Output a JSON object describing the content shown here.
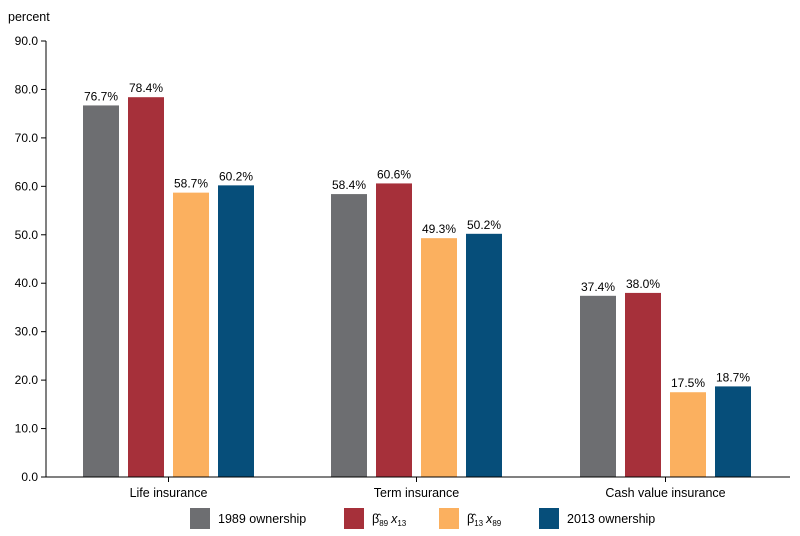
{
  "chart_data": {
    "type": "bar",
    "unit_label": "percent",
    "categories": [
      "Life insurance",
      "Term insurance",
      "Cash value insurance"
    ],
    "ylim": [
      0,
      90
    ],
    "yticks": [
      "0.0",
      "10.0",
      "20.0",
      "30.0",
      "40.0",
      "50.0",
      "60.0",
      "70.0",
      "80.0",
      "90.0"
    ],
    "grid": false,
    "legend_position": "bottom",
    "series": [
      {
        "name": "1989 ownership",
        "color": "#6d6e71",
        "values": [
          76.7,
          58.4,
          37.4
        ],
        "labels": [
          "76.7%",
          "58.4%",
          "37.4%"
        ]
      },
      {
        "name": "β̂89 x13",
        "legend": {
          "beta_sub": "89",
          "x_sub": "13"
        },
        "color": "#a6303a",
        "values": [
          78.4,
          60.6,
          38.0
        ],
        "labels": [
          "78.4%",
          "60.6%",
          "38.0%"
        ]
      },
      {
        "name": "β̂13 x89",
        "legend": {
          "beta_sub": "13",
          "x_sub": "89"
        },
        "color": "#fbb05f",
        "values": [
          58.7,
          49.3,
          17.5
        ],
        "labels": [
          "58.7%",
          "49.3%",
          "17.5%"
        ]
      },
      {
        "name": "2013 ownership",
        "color": "#064e7a",
        "values": [
          60.2,
          50.2,
          18.7
        ],
        "labels": [
          "60.2%",
          "50.2%",
          "18.7%"
        ]
      }
    ]
  }
}
